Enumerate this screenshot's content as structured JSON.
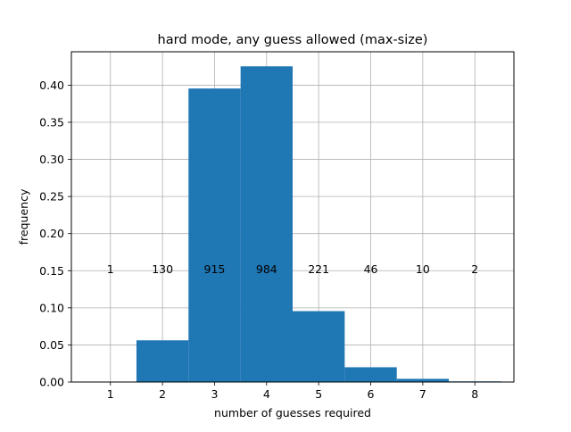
{
  "chart_data": {
    "type": "bar",
    "title": "hard mode, any guess allowed (max-size)",
    "xlabel": "number of guesses required",
    "ylabel": "frequency",
    "categories": [
      "1",
      "2",
      "3",
      "4",
      "5",
      "6",
      "7",
      "8"
    ],
    "x": [
      1,
      2,
      3,
      4,
      5,
      6,
      7,
      8
    ],
    "values": [
      0.0004,
      0.0562,
      0.3955,
      0.4254,
      0.0955,
      0.0199,
      0.0043,
      0.0009
    ],
    "counts": [
      "1",
      "130",
      "915",
      "984",
      "221",
      "46",
      "10",
      "2"
    ],
    "count_label_y": 0.152,
    "xlim": [
      0.25,
      8.75
    ],
    "ylim": [
      0,
      0.445
    ],
    "yticks": [
      0.0,
      0.05,
      0.1,
      0.15,
      0.2,
      0.25,
      0.3,
      0.35,
      0.4
    ],
    "ytick_labels": [
      "0.00",
      "0.05",
      "0.10",
      "0.15",
      "0.20",
      "0.25",
      "0.30",
      "0.35",
      "0.40"
    ],
    "grid": true,
    "bar_color": "#1f77b4",
    "grid_color": "#b0b0b0"
  }
}
